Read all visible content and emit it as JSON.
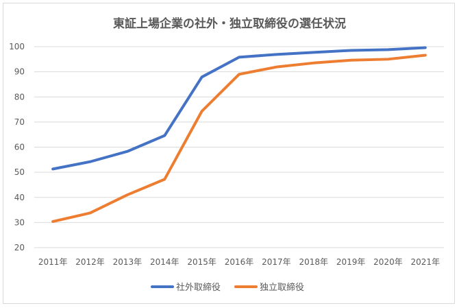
{
  "chart_data": {
    "type": "line",
    "title": "東証上場企業の社外・独立取締役の選任状況",
    "xlabel": "",
    "ylabel": "",
    "categories": [
      "2011年",
      "2012年",
      "2013年",
      "2014年",
      "2015年",
      "2016年",
      "2017年",
      "2018年",
      "2019年",
      "2020年",
      "2021年"
    ],
    "ylim": [
      20,
      100
    ],
    "yticks": [
      20,
      30,
      40,
      50,
      60,
      70,
      80,
      90,
      100
    ],
    "grid": true,
    "legend_position": "bottom",
    "series": [
      {
        "name": "社外取締役",
        "color": "#4472C4",
        "values": [
          51.3,
          54.2,
          58.3,
          64.6,
          87.9,
          95.8,
          96.9,
          97.7,
          98.5,
          98.8,
          99.6
        ]
      },
      {
        "name": "独立取締役",
        "color": "#ED7D31",
        "values": [
          30.4,
          33.8,
          41.0,
          47.2,
          74.3,
          89.0,
          91.9,
          93.5,
          94.6,
          95.0,
          96.6
        ]
      }
    ]
  }
}
